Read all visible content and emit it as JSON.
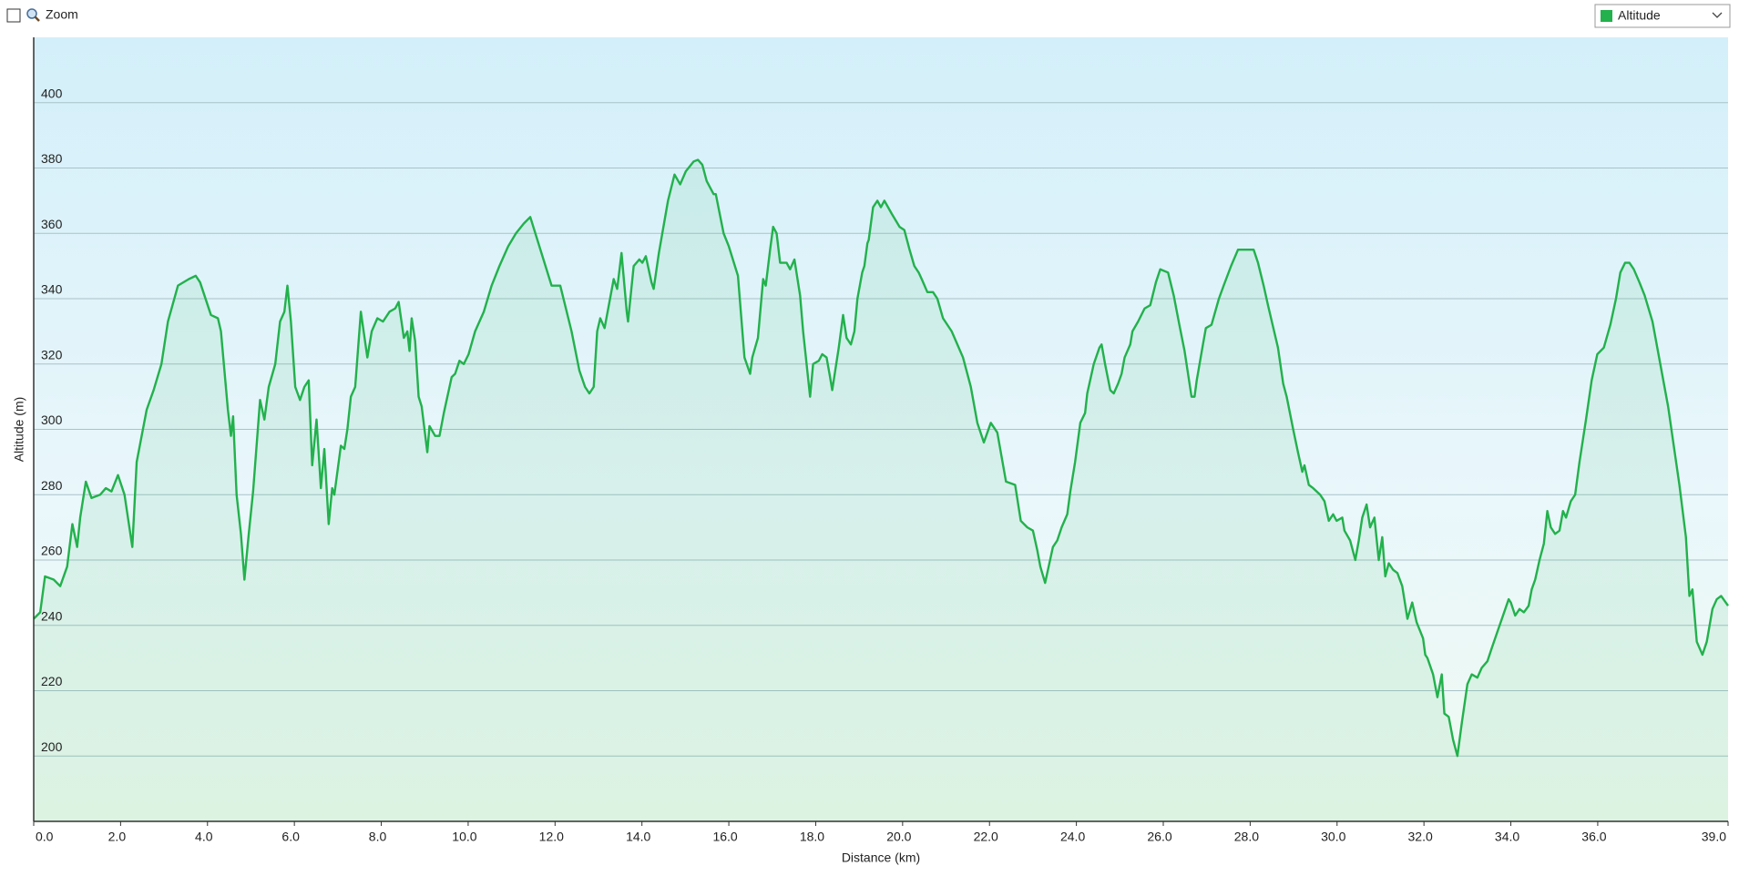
{
  "zoom_label": "Zoom",
  "chart_data": {
    "type": "area",
    "x_label": "Distance  (km)",
    "y_label": "Altitude (m)",
    "xlim": [
      0,
      39
    ],
    "ylim": [
      180,
      420
    ],
    "xticks": [
      {
        "value": 0,
        "label": "0.0"
      },
      {
        "value": 2,
        "label": "2.0"
      },
      {
        "value": 4,
        "label": "4.0"
      },
      {
        "value": 6,
        "label": "6.0"
      },
      {
        "value": 8,
        "label": "8.0"
      },
      {
        "value": 10,
        "label": "10.0"
      },
      {
        "value": 12,
        "label": "12.0"
      },
      {
        "value": 14,
        "label": "14.0"
      },
      {
        "value": 16,
        "label": "16.0"
      },
      {
        "value": 18,
        "label": "18.0"
      },
      {
        "value": 20,
        "label": "20.0"
      },
      {
        "value": 22,
        "label": "22.0"
      },
      {
        "value": 24,
        "label": "24.0"
      },
      {
        "value": 26,
        "label": "26.0"
      },
      {
        "value": 28,
        "label": "28.0"
      },
      {
        "value": 30,
        "label": "30.0"
      },
      {
        "value": 32,
        "label": "32.0"
      },
      {
        "value": 34,
        "label": "34.0"
      },
      {
        "value": 36,
        "label": "36.0"
      },
      {
        "value": 39,
        "label": "39.0"
      }
    ],
    "yticks": [
      200,
      220,
      240,
      260,
      280,
      300,
      320,
      340,
      360,
      380,
      400
    ],
    "grid": true,
    "x": [
      0.0,
      0.15,
      0.26,
      0.46,
      0.61,
      0.77,
      0.89,
      1.0,
      1.07,
      1.2,
      1.33,
      1.53,
      1.66,
      1.79,
      1.94,
      2.09,
      2.27,
      2.37,
      2.6,
      2.76,
      2.94,
      3.09,
      3.32,
      3.57,
      3.73,
      3.83,
      4.08,
      4.24,
      4.31,
      4.47,
      4.54,
      4.59,
      4.67,
      4.77,
      4.85,
      4.95,
      5.05,
      5.21,
      5.31,
      5.41,
      5.56,
      5.67,
      5.77,
      5.84,
      5.92,
      6.02,
      6.13,
      6.23,
      6.33,
      6.41,
      6.51,
      6.61,
      6.69,
      6.79,
      6.87,
      6.92,
      7.02,
      7.07,
      7.15,
      7.22,
      7.3,
      7.4,
      7.53,
      7.68,
      7.78,
      7.91,
      8.04,
      8.19,
      8.32,
      8.4,
      8.52,
      8.6,
      8.65,
      8.7,
      8.78,
      8.86,
      8.93,
      9.06,
      9.11,
      9.24,
      9.34,
      9.44,
      9.62,
      9.7,
      9.8,
      9.9,
      10.01,
      10.16,
      10.36,
      10.54,
      10.72,
      10.92,
      11.1,
      11.28,
      11.43,
      11.92,
      12.12,
      12.38,
      12.56,
      12.69,
      12.79,
      12.89,
      12.97,
      13.04,
      13.14,
      13.35,
      13.43,
      13.53,
      13.65,
      13.68,
      13.81,
      13.94,
      14.01,
      14.09,
      14.22,
      14.27,
      14.39,
      14.6,
      14.75,
      14.88,
      15.01,
      15.19,
      15.29,
      15.39,
      15.49,
      15.65,
      15.7,
      15.88,
      16.0,
      16.21,
      16.36,
      16.49,
      16.54,
      16.67,
      16.79,
      16.85,
      16.95,
      17.02,
      17.1,
      17.18,
      17.33,
      17.41,
      17.51,
      17.64,
      17.71,
      17.87,
      17.94,
      18.07,
      18.15,
      18.25,
      18.33,
      18.38,
      18.53,
      18.63,
      18.71,
      18.81,
      18.89,
      18.96,
      19.07,
      19.12,
      19.19,
      19.22,
      19.32,
      19.42,
      19.5,
      19.58,
      19.75,
      19.93,
      20.04,
      20.16,
      20.27,
      20.37,
      20.44,
      20.57,
      20.7,
      20.8,
      20.93,
      21.13,
      21.39,
      21.57,
      21.72,
      21.87,
      22.03,
      22.18,
      22.38,
      22.59,
      22.72,
      22.87,
      23.0,
      23.1,
      23.17,
      23.28,
      23.46,
      23.56,
      23.66,
      23.79,
      23.86,
      23.97,
      24.09,
      24.2,
      24.25,
      24.4,
      24.53,
      24.58,
      24.66,
      24.78,
      24.86,
      24.96,
      25.04,
      25.11,
      25.24,
      25.29,
      25.42,
      25.57,
      25.7,
      25.83,
      25.93,
      26.11,
      26.24,
      26.37,
      26.49,
      26.65,
      26.72,
      26.77,
      26.9,
      26.98,
      27.11,
      27.28,
      27.39,
      27.56,
      27.72,
      28.08,
      28.18,
      28.31,
      28.41,
      28.64,
      28.76,
      28.84,
      28.99,
      29.1,
      29.2,
      29.25,
      29.35,
      29.45,
      29.61,
      29.71,
      29.81,
      29.91,
      29.99,
      30.12,
      30.17,
      30.3,
      30.42,
      30.5,
      30.58,
      30.68,
      30.76,
      30.86,
      30.96,
      31.04,
      31.11,
      31.19,
      31.29,
      31.39,
      31.5,
      31.62,
      31.73,
      31.83,
      31.98,
      32.03,
      32.08,
      32.21,
      32.31,
      32.41,
      32.47,
      32.57,
      32.67,
      32.77,
      32.87,
      33.0,
      33.1,
      33.23,
      33.33,
      33.46,
      33.56,
      33.69,
      33.82,
      33.95,
      34.0,
      34.1,
      34.2,
      34.3,
      34.41,
      34.48,
      34.56,
      34.66,
      34.76,
      34.84,
      34.92,
      35.02,
      35.12,
      35.2,
      35.27,
      35.38,
      35.48,
      35.58,
      35.73,
      35.86,
      35.99,
      36.14,
      36.29,
      36.42,
      36.52,
      36.63,
      36.73,
      36.83,
      36.96,
      37.08,
      37.26,
      37.44,
      37.62,
      37.75,
      37.88,
      38.03,
      38.11,
      38.18,
      38.28,
      38.41,
      38.51,
      38.64,
      38.74,
      38.84,
      39.0
    ],
    "series": [
      {
        "name": "Altitude",
        "color": "#22b14c",
        "values": [
          242,
          244,
          255,
          254,
          252,
          258,
          271,
          264,
          273,
          284,
          279,
          280,
          282,
          281,
          286,
          280,
          264,
          290,
          306,
          312,
          320,
          333,
          344,
          346,
          347,
          345,
          335,
          334,
          330,
          306,
          298,
          304,
          280,
          268,
          254,
          268,
          281,
          309,
          303,
          313,
          320,
          333,
          336,
          344,
          333,
          313,
          309,
          313,
          315,
          289,
          303,
          282,
          294,
          271,
          282,
          280,
          290,
          295,
          294,
          300,
          310,
          313,
          336,
          322,
          330,
          334,
          333,
          336,
          337,
          339,
          328,
          330,
          324,
          334,
          327,
          310,
          307,
          293,
          301,
          298,
          298,
          305,
          316,
          317,
          321,
          320,
          323,
          330,
          336,
          344,
          350,
          356,
          360,
          363,
          365,
          344,
          344,
          330,
          318,
          313,
          311,
          313,
          330,
          334,
          331,
          346,
          343,
          354,
          336,
          333,
          350,
          352,
          351,
          353,
          345,
          343,
          354,
          370,
          378,
          375,
          379,
          382,
          382.5,
          381,
          376,
          372,
          372,
          360,
          356,
          347,
          322,
          317,
          322,
          328,
          346,
          344,
          355,
          362,
          360,
          351,
          351,
          349,
          352,
          341,
          330,
          310,
          320,
          321,
          323,
          322,
          316,
          312,
          325,
          335,
          328,
          326,
          330,
          340,
          348,
          350,
          357,
          358,
          368,
          370,
          368,
          370,
          366,
          362,
          361,
          355,
          350,
          348,
          346,
          342,
          342,
          340,
          334,
          330,
          322,
          313,
          302,
          296,
          302,
          299,
          284,
          283,
          272,
          270,
          269,
          263,
          258,
          253,
          264,
          266,
          270,
          274,
          281,
          290,
          302,
          305,
          311,
          320,
          325,
          326,
          320,
          312,
          311,
          314,
          317,
          322,
          326,
          330,
          333,
          337,
          338,
          345,
          349,
          348,
          341,
          332,
          324,
          310,
          310,
          315,
          325,
          331,
          332,
          340,
          344,
          350,
          355,
          355,
          351,
          344,
          338,
          325,
          314,
          310,
          300,
          293,
          287,
          289,
          283,
          282,
          280,
          278,
          272,
          274,
          272,
          273,
          269,
          266,
          260,
          266,
          273,
          277,
          270,
          273,
          260,
          267,
          255,
          259,
          257,
          256,
          252,
          242,
          247,
          241,
          236,
          231,
          230,
          225,
          218,
          225,
          213,
          212,
          205,
          200,
          210,
          222,
          225,
          224,
          227,
          229,
          233,
          238,
          243,
          248,
          247,
          243,
          245,
          244,
          246,
          251,
          254,
          260,
          265,
          275,
          270,
          268,
          269,
          275,
          273,
          278,
          280,
          290,
          303,
          315,
          323,
          325,
          332,
          340,
          348,
          351,
          351,
          349,
          345,
          341,
          333,
          320,
          307,
          295,
          283,
          267,
          249,
          251,
          235,
          231,
          235,
          245,
          248,
          249,
          246
        ]
      }
    ]
  }
}
